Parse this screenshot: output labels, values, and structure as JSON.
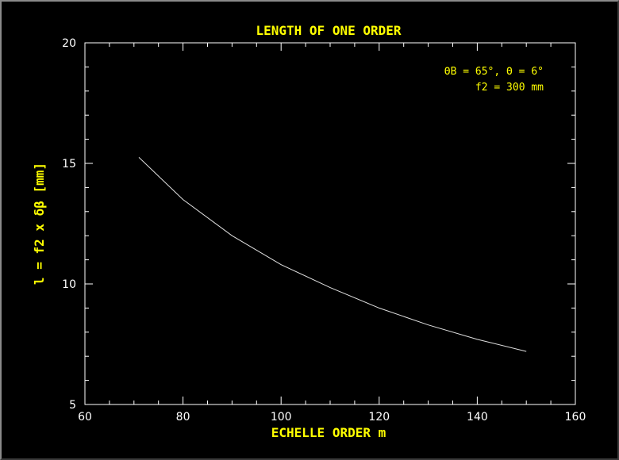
{
  "chart_data": {
    "type": "line",
    "title": "LENGTH OF ONE ORDER",
    "xlabel": "ECHELLE ORDER m",
    "ylabel": "l = f2 x δβ [mm]",
    "xlim": [
      60,
      160
    ],
    "ylim": [
      5,
      20
    ],
    "x_ticks": [
      "60",
      "80",
      "100",
      "120",
      "140",
      "160"
    ],
    "y_ticks": [
      "5",
      "10",
      "15",
      "20"
    ],
    "annotation_line1": "ΘB = 65°, Θ = 6°",
    "annotation_line2": "f2 = 300 mm",
    "grid": false,
    "series": [
      {
        "x": [
          71,
          80,
          90,
          100,
          110,
          120,
          130,
          140,
          150
        ],
        "y": [
          15.25,
          13.5,
          12.0,
          10.8,
          9.85,
          9.0,
          8.3,
          7.7,
          7.2
        ]
      }
    ]
  },
  "colors": {
    "text": "#ffff00",
    "axes": "#ffffff",
    "line": "#e0e0e0",
    "background": "#000000"
  }
}
